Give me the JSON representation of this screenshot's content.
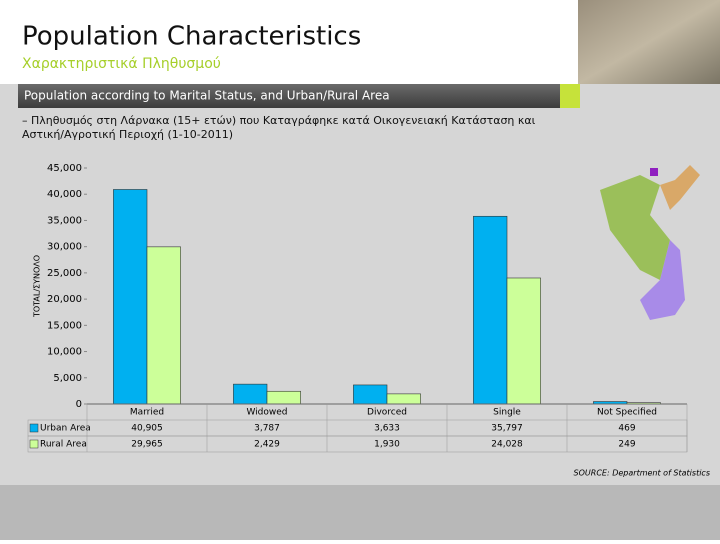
{
  "header": {
    "title": "Population Characteristics",
    "subtitle": "Χαρακτηριστικά Πληθυσμού",
    "banner": "Population according to Marital Status, and Urban/Rural Area",
    "description": "– Πληθυσμός στη Λάρνακα (15+ ετών) που Καταγράφηκε κατά Οικογενειακή Κατάσταση και Αστική/Αγροτική Περιοχή (1-10-2011)"
  },
  "chart_data": {
    "type": "bar",
    "y_label": "TOTAL/ΣΥΝΟΛΟ",
    "categories": [
      "Married",
      "Widowed",
      "Divorced",
      "Single",
      "Not Specified"
    ],
    "series": [
      {
        "name": "Urban Area",
        "color": "#00b0f0",
        "values": [
          40905,
          3787,
          3633,
          35797,
          469
        ],
        "value_labels": [
          "40,905",
          "3,787",
          "3,633",
          "35,797",
          "469"
        ]
      },
      {
        "name": "Rural Area",
        "color": "#ccff99",
        "values": [
          29965,
          2429,
          1930,
          24028,
          249
        ],
        "value_labels": [
          "29,965",
          "2,429",
          "1,930",
          "24,028",
          "249"
        ]
      }
    ],
    "ylim": [
      0,
      45000
    ],
    "yticks": [
      0,
      {
        "value": 5000,
        "label": "5,000"
      },
      {
        "value": 10000,
        "label": "10,000"
      },
      {
        "value": 15000,
        "label": "15,000"
      },
      {
        "value": 20000,
        "label": "20,000"
      },
      {
        "value": 25000,
        "label": "25,000"
      },
      {
        "value": 30000,
        "label": "30,000"
      },
      {
        "value": 35000,
        "label": "35,000"
      },
      {
        "value": 40000,
        "label": "40,000"
      },
      {
        "value": 45000,
        "label": "45,000"
      }
    ],
    "source": "SOURCE: Department of Statistics"
  }
}
